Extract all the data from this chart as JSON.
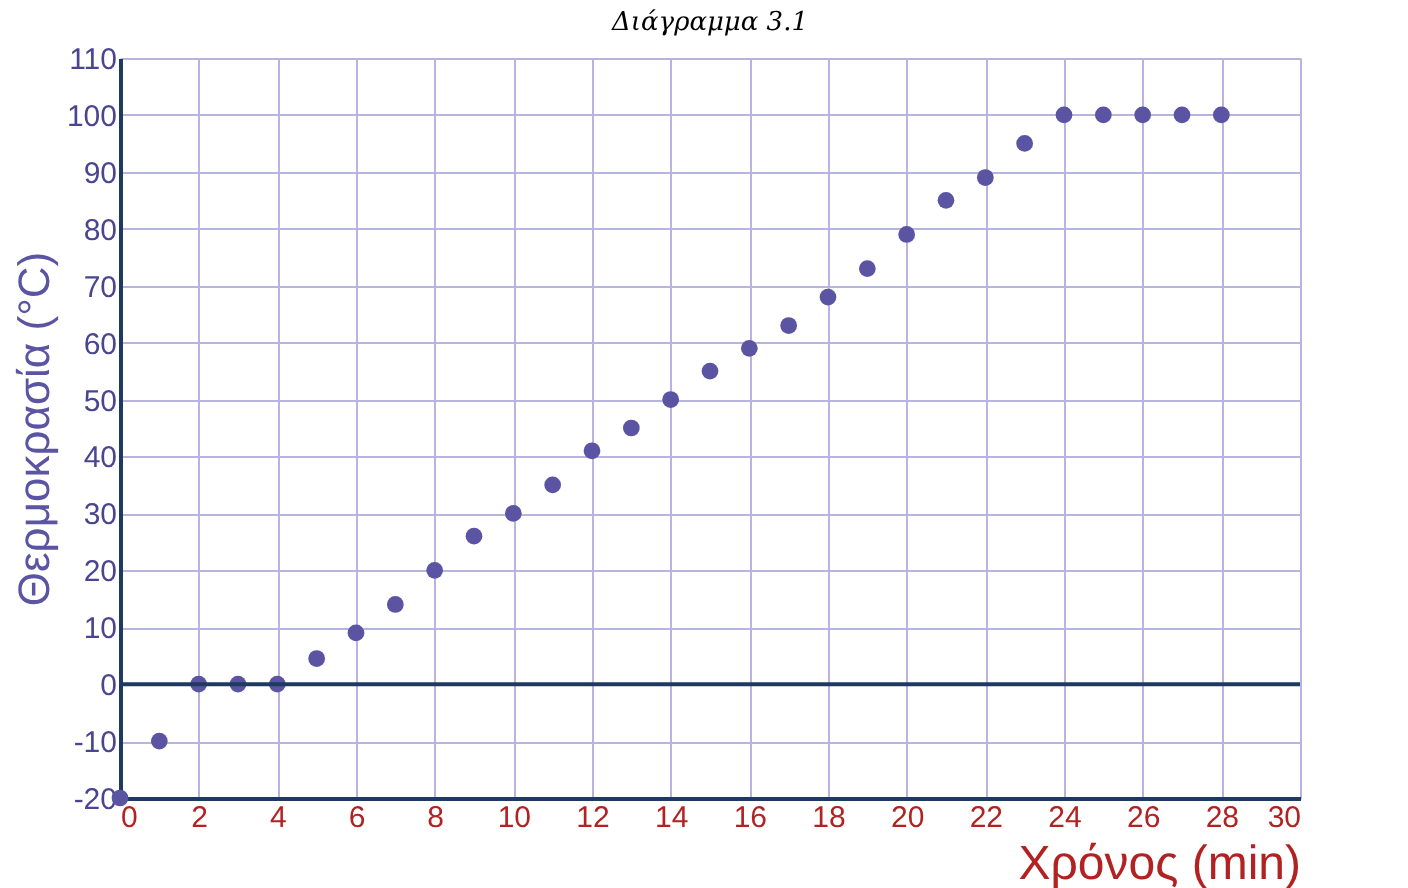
{
  "chart_data": {
    "type": "scatter",
    "title": "Διάγραμμα 3.1",
    "xlabel": "Χρόνος (min)",
    "ylabel": "Θερμοκρασία (°C)",
    "x": [
      0,
      1,
      2,
      3,
      4,
      5,
      6,
      7,
      8,
      9,
      10,
      11,
      12,
      13,
      14,
      15,
      16,
      17,
      18,
      19,
      20,
      21,
      22,
      23,
      24,
      25,
      26,
      27,
      28
    ],
    "series": [
      {
        "color": "#5b54a3",
        "values": [
          -20,
          -10,
          0,
          0,
          0,
          4.5,
          9,
          14,
          20,
          26,
          30,
          35,
          41,
          45,
          50,
          55,
          59,
          63,
          68,
          73,
          79,
          85,
          89,
          95,
          100,
          100,
          100,
          100,
          100
        ]
      }
    ],
    "xlim": [
      0,
      30
    ],
    "xticks": [
      0,
      2,
      4,
      6,
      8,
      10,
      12,
      14,
      16,
      18,
      20,
      22,
      24,
      26,
      28,
      30
    ],
    "ylim": [
      -20,
      110
    ],
    "yticks": [
      -20,
      -10,
      0,
      10,
      20,
      30,
      40,
      50,
      60,
      70,
      80,
      90,
      100,
      110
    ],
    "grid": true,
    "marker": "circle"
  }
}
